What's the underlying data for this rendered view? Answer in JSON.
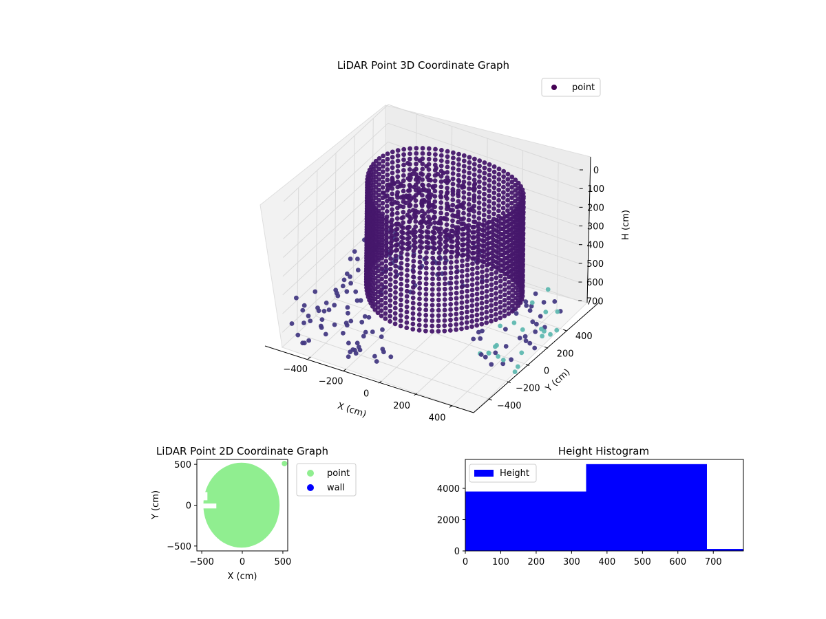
{
  "chart_data": [
    {
      "type": "scatter",
      "projection": "3d",
      "title": "LiDAR Point 3D Coordinate Graph",
      "xlabel": "X (cm)",
      "ylabel": "Y (cm)",
      "zlabel": "H (cm)",
      "xticks": [
        "−400",
        "−200",
        "0",
        "200",
        "400"
      ],
      "yticks": [
        "−400",
        "−200",
        "0",
        "200",
        "400"
      ],
      "zticks": [
        "0",
        "100",
        "200",
        "300",
        "400",
        "500",
        "600",
        "700"
      ],
      "xlim": [
        -560,
        520
      ],
      "ylim": [
        -560,
        560
      ],
      "zlim": [
        0,
        780
      ],
      "zaxis_inverted": true,
      "legend": {
        "entries": [
          "point"
        ],
        "position": "top-right"
      },
      "colormap": "viridis",
      "colors": {
        "ring": "#46176c",
        "low": "#443a83",
        "high": "#5fb8b0"
      }
    },
    {
      "type": "scatter",
      "title": "LiDAR Point 2D Coordinate Graph",
      "xlabel": "X (cm)",
      "ylabel": "Y (cm)",
      "xticks": [
        "−500",
        "0",
        "500"
      ],
      "yticks": [
        "500",
        "0",
        "−500"
      ],
      "xlim": [
        -560,
        560
      ],
      "ylim": [
        -560,
        560
      ],
      "legend": {
        "entries": [
          "point",
          "wall"
        ],
        "position": "right"
      },
      "series": [
        {
          "name": "point",
          "color": "#90ee90"
        },
        {
          "name": "wall",
          "color": "#0000ff"
        }
      ]
    },
    {
      "type": "bar",
      "title": "Height Histogram",
      "xticks": [
        "0",
        "100",
        "200",
        "300",
        "400",
        "500",
        "600",
        "700"
      ],
      "yticks": [
        "0",
        "2000",
        "4000"
      ],
      "xlim": [
        0,
        785
      ],
      "ylim": [
        0,
        5850
      ],
      "bins": [
        {
          "x0": 0,
          "x1": 341,
          "count": 3800
        },
        {
          "x0": 341,
          "x1": 682,
          "count": 5550
        },
        {
          "x0": 682,
          "x1": 785,
          "count": 130
        }
      ],
      "legend": {
        "entries": [
          "Height"
        ],
        "position": "top-left"
      },
      "series": [
        {
          "name": "Height",
          "color": "#0000ff"
        }
      ]
    }
  ]
}
